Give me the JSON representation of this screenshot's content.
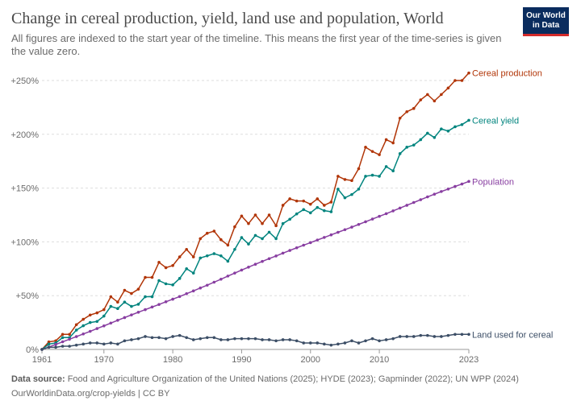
{
  "title": "Change in cereal production, yield, land use and population, World",
  "subtitle": "All figures are indexed to the start year of the timeline. This means the first year of the time-series is given the value zero.",
  "logo": {
    "line1": "Our World",
    "line2": "in Data"
  },
  "footer": {
    "source_label": "Data source:",
    "source_text": "Food and Agriculture Organization of the United Nations (2025); HYDE (2023); Gapminder (2022); UN WPP (2024)",
    "url_line": "OurWorldinData.org/crop-yields | CC BY"
  },
  "chart_data": {
    "type": "line",
    "title": "Change in cereal production, yield, land use and population, World",
    "x_start": 1961,
    "x_end": 2023,
    "xticks": [
      1961,
      1970,
      1980,
      1990,
      2000,
      2010,
      2023
    ],
    "ylim": [
      0,
      250
    ],
    "yticks": [
      0,
      50,
      100,
      150,
      200,
      250
    ],
    "ytick_labels": [
      "0%",
      "+50%",
      "+100%",
      "+150%",
      "+200%",
      "+250%"
    ],
    "grid": "horizontal dashed",
    "legend": "labels at line ends",
    "series": [
      {
        "name": "Cereal production",
        "color": "#b13507",
        "values": [
          0,
          7,
          8,
          14,
          14,
          23,
          28,
          32,
          34,
          37,
          49,
          44,
          55,
          52,
          56,
          67,
          67,
          81,
          76,
          78,
          86,
          93,
          86,
          103,
          108,
          110,
          102,
          97,
          114,
          124,
          117,
          125,
          117,
          125,
          115,
          134,
          140,
          138,
          138,
          135,
          140,
          134,
          137,
          161,
          158,
          157,
          168,
          188,
          184,
          181,
          195,
          192,
          215,
          221,
          224,
          232,
          237,
          231,
          237,
          243,
          250,
          250,
          257
        ]
      },
      {
        "name": "Cereal yield",
        "color": "#00847e",
        "values": [
          0,
          5,
          6,
          11,
          11,
          18,
          22,
          25,
          26,
          31,
          40,
          38,
          44,
          40,
          42,
          49,
          49,
          64,
          61,
          60,
          66,
          75,
          71,
          85,
          87,
          89,
          87,
          82,
          93,
          104,
          98,
          106,
          103,
          109,
          103,
          117,
          121,
          126,
          130,
          127,
          132,
          129,
          128,
          149,
          141,
          144,
          149,
          161,
          162,
          161,
          170,
          166,
          182,
          188,
          190,
          195,
          201,
          197,
          205,
          203,
          207,
          209,
          213
        ]
      },
      {
        "name": "Population",
        "color": "#883ea1",
        "values": [
          0,
          2.2,
          4.6,
          7.1,
          9.5,
          11.9,
          14.4,
          16.8,
          19.4,
          21.9,
          24.5,
          27.1,
          29.6,
          32.1,
          34.6,
          37.0,
          39.4,
          41.8,
          44.3,
          46.7,
          49.2,
          51.8,
          54.4,
          57.1,
          59.7,
          62.5,
          65.3,
          68.2,
          71.0,
          73.8,
          76.5,
          79.2,
          81.8,
          84.4,
          86.9,
          89.5,
          92.0,
          94.5,
          96.9,
          99.3,
          101.7,
          104.1,
          106.5,
          108.9,
          111.3,
          113.7,
          116.2,
          118.7,
          121.2,
          123.7,
          126.2,
          128.8,
          131.4,
          134.0,
          136.6,
          139.2,
          141.8,
          144.3,
          146.8,
          149.1,
          151.5,
          153.8,
          156.2
        ]
      },
      {
        "name": "Land used for cereal",
        "color": "#3c4e66",
        "values": [
          0,
          2,
          2,
          3,
          3,
          4,
          5,
          6,
          6,
          5,
          6,
          5,
          8,
          9,
          10,
          12,
          11,
          11,
          10,
          12,
          13,
          11,
          9,
          10,
          11,
          11,
          9,
          9,
          10,
          10,
          10,
          10,
          9,
          9,
          8,
          9,
          9,
          8,
          6,
          6,
          6,
          5,
          4,
          5,
          6,
          8,
          6,
          8,
          10,
          8,
          9,
          10,
          12,
          12,
          12,
          13,
          13,
          12,
          12,
          13,
          14,
          14,
          14
        ]
      }
    ]
  }
}
